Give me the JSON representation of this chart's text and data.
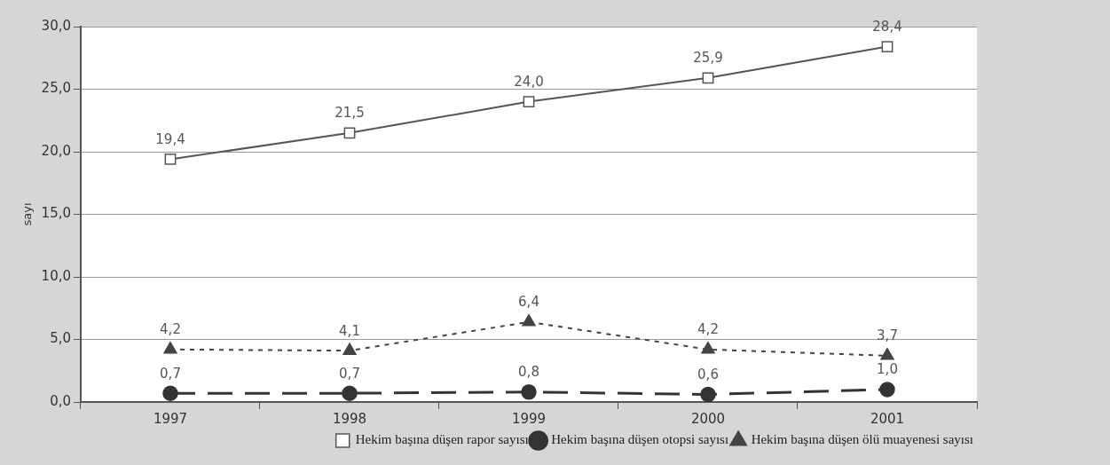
{
  "chart_data": {
    "type": "line",
    "ylabel": "sayı",
    "categories": [
      "1997",
      "1998",
      "1999",
      "2000",
      "2001"
    ],
    "series": [
      {
        "name": "Hekim başına düşen rapor sayısı",
        "color": "#555555",
        "marker": "square",
        "line_style": "solid",
        "values": [
          19.4,
          21.5,
          24.0,
          25.9,
          28.4
        ],
        "value_labels": [
          "19,4",
          "21,5",
          "24,0",
          "25,9",
          "28,4"
        ]
      },
      {
        "name": "Hekim başına düşen otopsi sayısı",
        "color": "#333333",
        "marker": "circle",
        "line_style": "dashed",
        "values": [
          0.7,
          0.7,
          0.8,
          0.6,
          1.0
        ],
        "value_labels": [
          "0,7",
          "0,7",
          "0,8",
          "0,6",
          "1,0"
        ]
      },
      {
        "name": "Hekim başına düşen ölü muayenesi sayısı",
        "color": "#444444",
        "marker": "triangle",
        "line_style": "dotted",
        "values": [
          4.2,
          4.1,
          6.4,
          4.2,
          3.7
        ],
        "value_labels": [
          "4,2",
          "4,1",
          "6,4",
          "4,2",
          "3,7"
        ]
      }
    ],
    "ylim": [
      0,
      30
    ],
    "yticks": [
      {
        "value": 0,
        "label": "0,0"
      },
      {
        "value": 5,
        "label": "5,0"
      },
      {
        "value": 10,
        "label": "10,0"
      },
      {
        "value": 15,
        "label": "15,0"
      },
      {
        "value": 20,
        "label": "20,0"
      },
      {
        "value": 25,
        "label": "25,0"
      },
      {
        "value": 30,
        "label": "30,0"
      }
    ],
    "grid": "y",
    "legend": "bottom right"
  }
}
